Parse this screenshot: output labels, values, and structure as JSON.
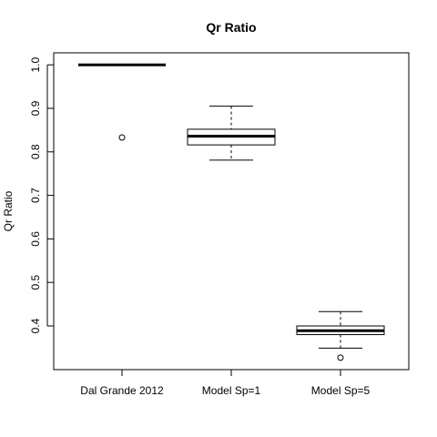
{
  "chart_data": {
    "type": "boxplot",
    "title": "Qr Ratio",
    "xlabel": "",
    "ylabel": "Qr Ratio",
    "ylim": [
      0.3,
      1.02
    ],
    "yticks": [
      "0.4",
      "0.5",
      "0.6",
      "0.7",
      "0.8",
      "0.9",
      "1.0"
    ],
    "grid": false,
    "categories": [
      "Dal Grande 2012",
      "Model Sp=1",
      "Model Sp=5"
    ],
    "boxes": [
      {
        "name": "Dal Grande 2012",
        "whisker_low": 1.0,
        "q1": 1.0,
        "median": 1.0,
        "q3": 1.0,
        "whisker_high": 1.0,
        "outliers": [
          0.833
        ]
      },
      {
        "name": "Model Sp=1",
        "whisker_low": 0.781,
        "q1": 0.816,
        "median": 0.836,
        "q3": 0.852,
        "whisker_high": 0.905,
        "outliers": []
      },
      {
        "name": "Model Sp=5",
        "whisker_low": 0.349,
        "q1": 0.38,
        "median": 0.389,
        "q3": 0.4,
        "whisker_high": 0.433,
        "outliers": [
          0.327
        ]
      }
    ]
  }
}
